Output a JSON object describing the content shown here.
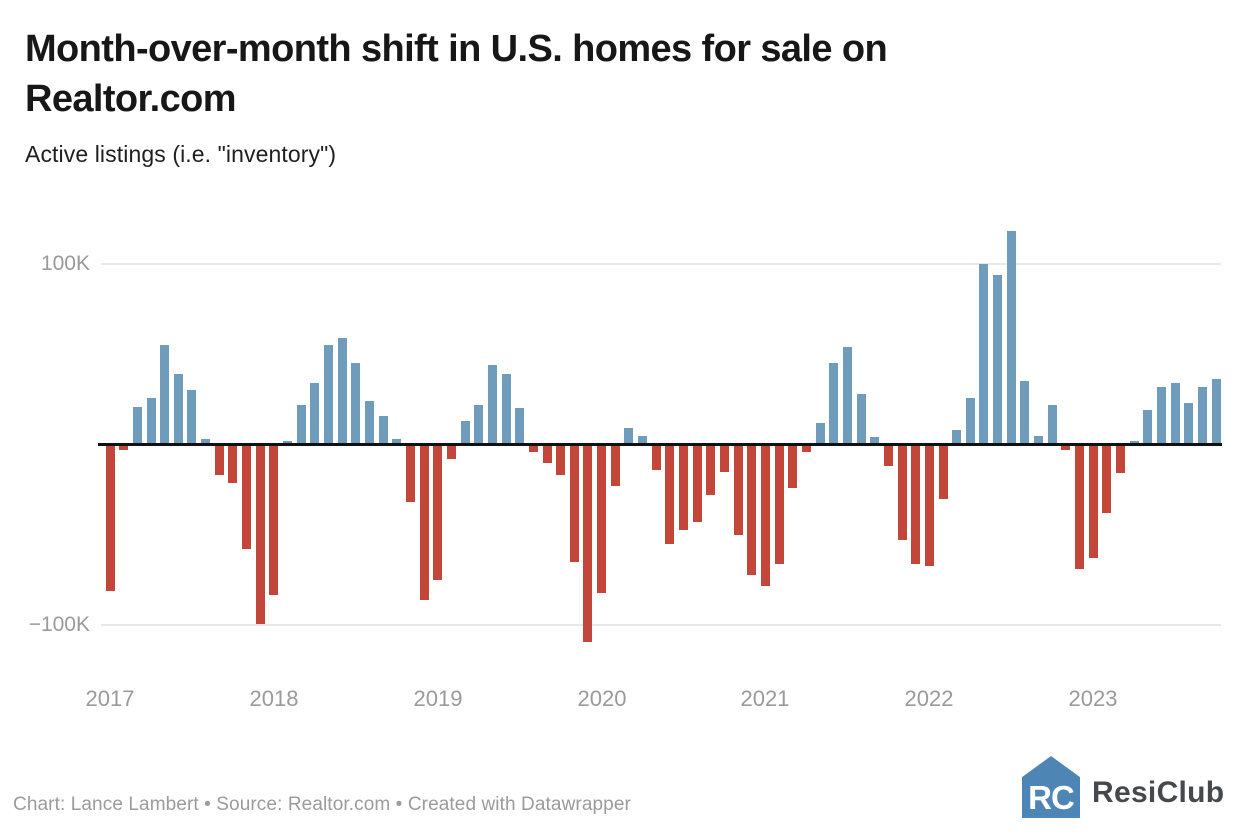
{
  "header": {
    "title_line1": "Month-over-month shift in U.S. homes for sale on",
    "title_line2": "Realtor.com",
    "subtitle": "Active listings (i.e. \"inventory\")"
  },
  "chart_data": {
    "type": "bar",
    "title": "Month-over-month shift in U.S. homes for sale on Realtor.com",
    "subtitle": "Active listings (i.e. \"inventory\")",
    "series_name": "Month-over-month change in active listings",
    "unit": "thousands of listings (K)",
    "ylim": [
      -120,
      125
    ],
    "grid": "horizontal",
    "yticks": [
      {
        "value": 100,
        "label": "100K"
      },
      {
        "value": -100,
        "label": "−100K"
      }
    ],
    "xticks": [
      "2017",
      "2018",
      "2019",
      "2020",
      "2021",
      "2022",
      "2023"
    ],
    "months": [
      "2017-01",
      "2017-02",
      "2017-03",
      "2017-04",
      "2017-05",
      "2017-06",
      "2017-07",
      "2017-08",
      "2017-09",
      "2017-10",
      "2017-11",
      "2017-12",
      "2018-01",
      "2018-02",
      "2018-03",
      "2018-04",
      "2018-05",
      "2018-06",
      "2018-07",
      "2018-08",
      "2018-09",
      "2018-10",
      "2018-11",
      "2018-12",
      "2019-01",
      "2019-02",
      "2019-03",
      "2019-04",
      "2019-05",
      "2019-06",
      "2019-07",
      "2019-08",
      "2019-09",
      "2019-10",
      "2019-11",
      "2019-12",
      "2020-01",
      "2020-02",
      "2020-03",
      "2020-04",
      "2020-05",
      "2020-06",
      "2020-07",
      "2020-08",
      "2020-09",
      "2020-10",
      "2020-11",
      "2020-12",
      "2021-01",
      "2021-02",
      "2021-03",
      "2021-04",
      "2021-05",
      "2021-06",
      "2021-07",
      "2021-08",
      "2021-09",
      "2021-10",
      "2021-11",
      "2021-12",
      "2022-01",
      "2022-02",
      "2022-03",
      "2022-04",
      "2022-05",
      "2022-06",
      "2022-07",
      "2022-08",
      "2022-09",
      "2022-10",
      "2022-11",
      "2022-12",
      "2023-01",
      "2023-02",
      "2023-03",
      "2023-04",
      "2023-05",
      "2023-06",
      "2023-07",
      "2023-08",
      "2023-09",
      "2023-10"
    ],
    "values_k": [
      -81,
      -3,
      21,
      26,
      55,
      39,
      30,
      3,
      -17,
      -21,
      -58,
      -99,
      -83,
      2,
      22,
      34,
      55,
      59,
      45,
      24,
      16,
      3,
      -32,
      -86,
      -75,
      -8,
      13,
      22,
      44,
      39,
      20,
      -4,
      -10,
      -17,
      -65,
      -109,
      -82,
      -23,
      9,
      5,
      -14,
      -55,
      -47,
      -43,
      -28,
      -15,
      -50,
      -72,
      -78,
      -66,
      -24,
      -4,
      12,
      45,
      54,
      28,
      4,
      -12,
      -53,
      -66,
      -67,
      -30,
      8,
      26,
      100,
      94,
      118,
      35,
      5,
      22,
      -3,
      -69,
      -63,
      -38,
      -16,
      2,
      19,
      32,
      34,
      23,
      32,
      36
    ],
    "colors": {
      "positive": "#6f9cba",
      "negative": "#c2473a",
      "axis": "#111111",
      "gridline": "#e8e8e8",
      "tick_text": "#9a9a9a"
    }
  },
  "footer": {
    "credit": "Chart: Lance Lambert • Source: Realtor.com • Created with Datawrapper",
    "logo_monogram": "RC",
    "logo_text": "ResiClub"
  }
}
